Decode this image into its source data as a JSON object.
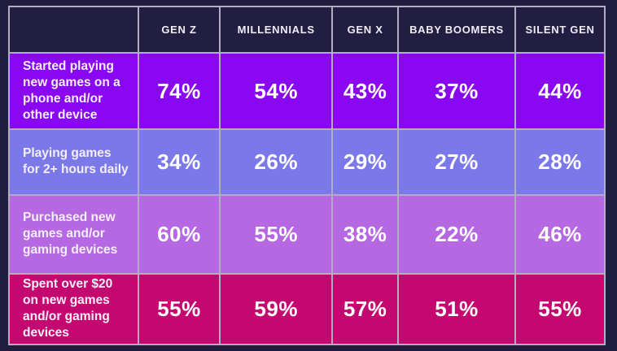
{
  "style": {
    "page_bg": "#211d3f",
    "header_bg": "#221e42",
    "border_color": "#b3adc4",
    "text_color": "#ffffff",
    "row_colors": [
      "#8a07f2",
      "#7b79e9",
      "#b668e3",
      "#c4086f"
    ]
  },
  "chart_data": {
    "type": "table",
    "title": "",
    "columns": [
      "GEN Z",
      "MILLENNIALS",
      "GEN X",
      "BABY BOOMERS",
      "SILENT GEN"
    ],
    "corner_label": "",
    "rows": [
      {
        "label": "Started playing new games on a phone and/or other device",
        "color": "#8a07f2",
        "values": [
          "74%",
          "54%",
          "43%",
          "37%",
          "44%"
        ]
      },
      {
        "label": "Playing games for 2+ hours daily",
        "color": "#7b79e9",
        "values": [
          "34%",
          "26%",
          "29%",
          "27%",
          "28%"
        ]
      },
      {
        "label": "Purchased new games and/or gaming devices",
        "color": "#b668e3",
        "values": [
          "60%",
          "55%",
          "38%",
          "22%",
          "46%"
        ]
      },
      {
        "label": "Spent over $20 on new games and/or gaming devices",
        "color": "#c4086f",
        "values": [
          "55%",
          "59%",
          "57%",
          "51%",
          "55%"
        ]
      }
    ]
  }
}
